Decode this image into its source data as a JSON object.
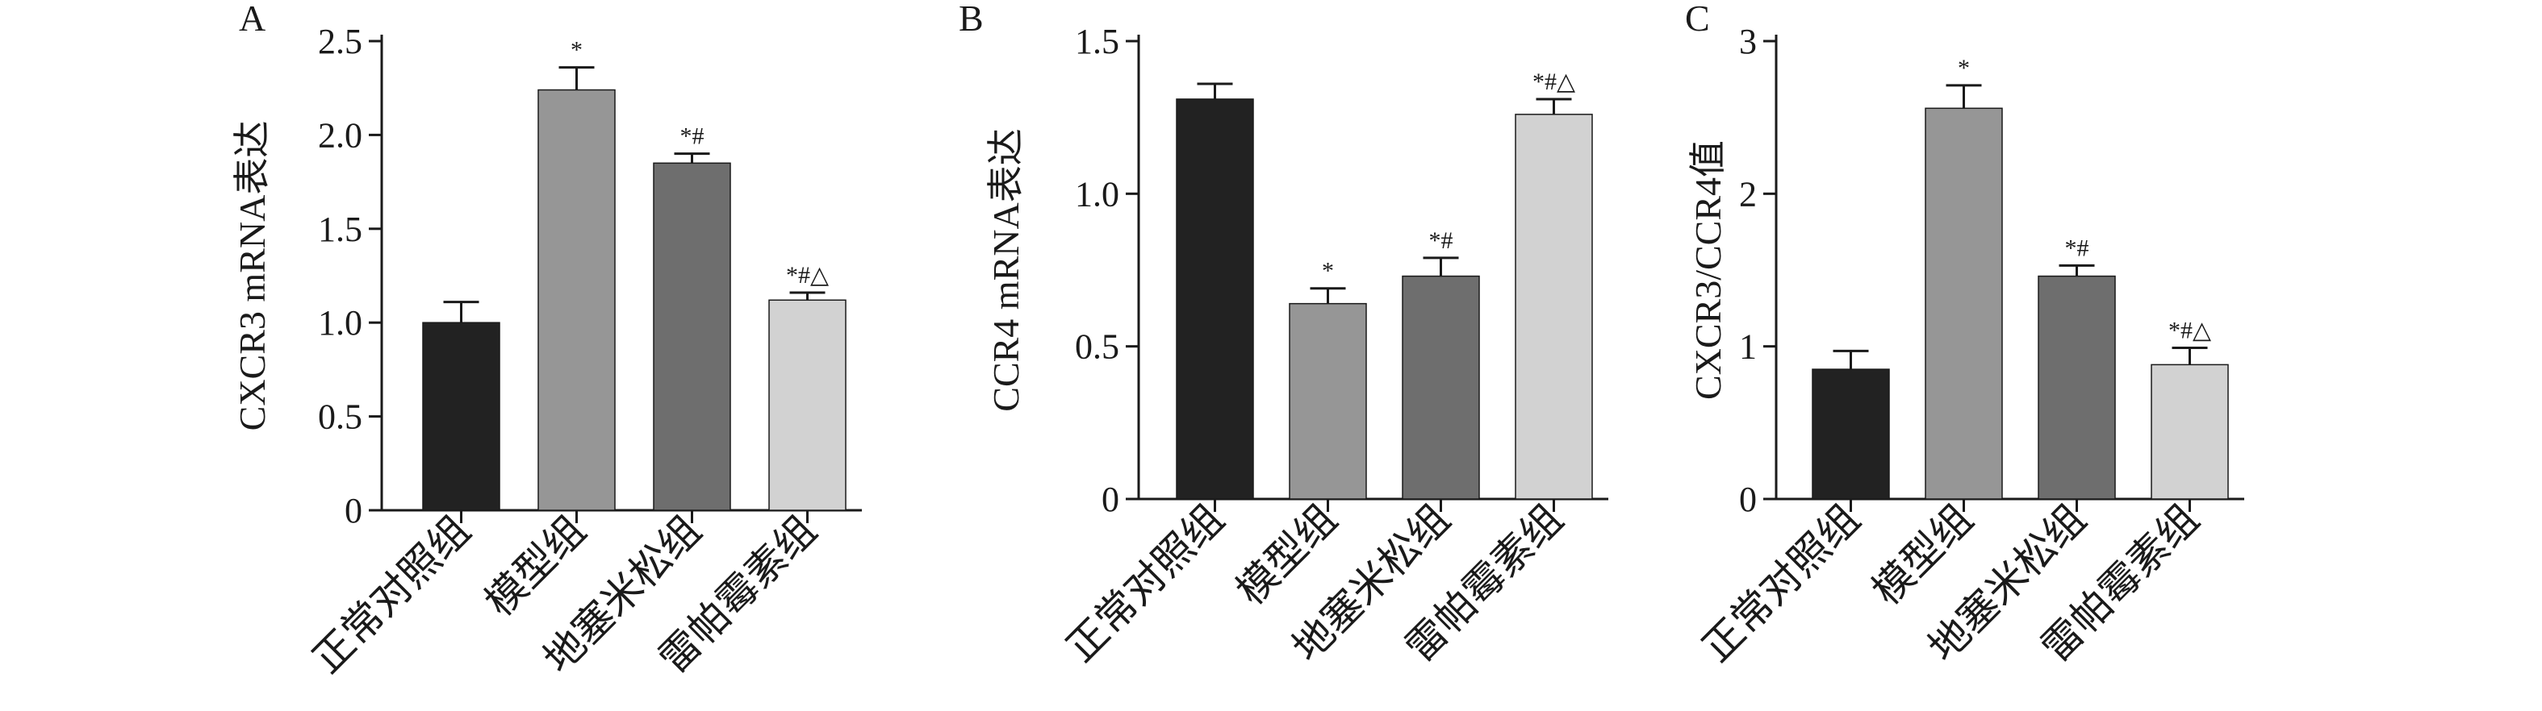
{
  "chart_data": [
    {
      "type": "bar",
      "panel_label": "A",
      "ylabel": "CXCR3 mRNA表达",
      "categories": [
        "正常对照组",
        "模型组",
        "地塞米松组",
        "雷帕霉素组"
      ],
      "values": [
        1.0,
        2.24,
        1.85,
        1.12
      ],
      "errors": [
        0.11,
        0.12,
        0.05,
        0.04
      ],
      "significance": [
        "",
        "*",
        "*#",
        "*#△"
      ],
      "yticks": [
        0,
        0.5,
        1.0,
        1.5,
        2.0,
        2.5
      ],
      "ytick_labels": [
        "0",
        "0.5",
        "1.0",
        "1.5",
        "2.0",
        "2.5"
      ],
      "ylim": [
        0,
        2.5
      ],
      "colors": [
        "#222222",
        "#969696",
        "#6e6e6e",
        "#d2d2d2"
      ]
    },
    {
      "type": "bar",
      "panel_label": "B",
      "ylabel": "CCR4 mRNA表达",
      "categories": [
        "正常对照组",
        "模型组",
        "地塞米松组",
        "雷帕霉素组"
      ],
      "values": [
        1.31,
        0.64,
        0.73,
        1.26
      ],
      "errors": [
        0.05,
        0.05,
        0.06,
        0.05
      ],
      "significance": [
        "",
        "*",
        "*#",
        "*#△"
      ],
      "yticks": [
        0,
        0.5,
        1.0,
        1.5
      ],
      "ytick_labels": [
        "0",
        "0.5",
        "1.0",
        "1.5"
      ],
      "ylim": [
        0,
        1.5
      ],
      "colors": [
        "#222222",
        "#969696",
        "#6e6e6e",
        "#d2d2d2"
      ]
    },
    {
      "type": "bar",
      "panel_label": "C",
      "ylabel": "CXCR3/CCR4值",
      "categories": [
        "正常对照组",
        "模型组",
        "地塞米松组",
        "雷帕霉素组"
      ],
      "values": [
        0.85,
        2.56,
        1.46,
        0.88
      ],
      "errors": [
        0.12,
        0.15,
        0.07,
        0.11
      ],
      "significance": [
        "",
        "*",
        "*#",
        "*#△"
      ],
      "yticks": [
        0,
        1,
        2,
        3
      ],
      "ytick_labels": [
        "0",
        "1",
        "2",
        "3"
      ],
      "ylim": [
        0,
        3
      ],
      "colors": [
        "#222222",
        "#969696",
        "#6e6e6e",
        "#d2d2d2"
      ]
    }
  ]
}
